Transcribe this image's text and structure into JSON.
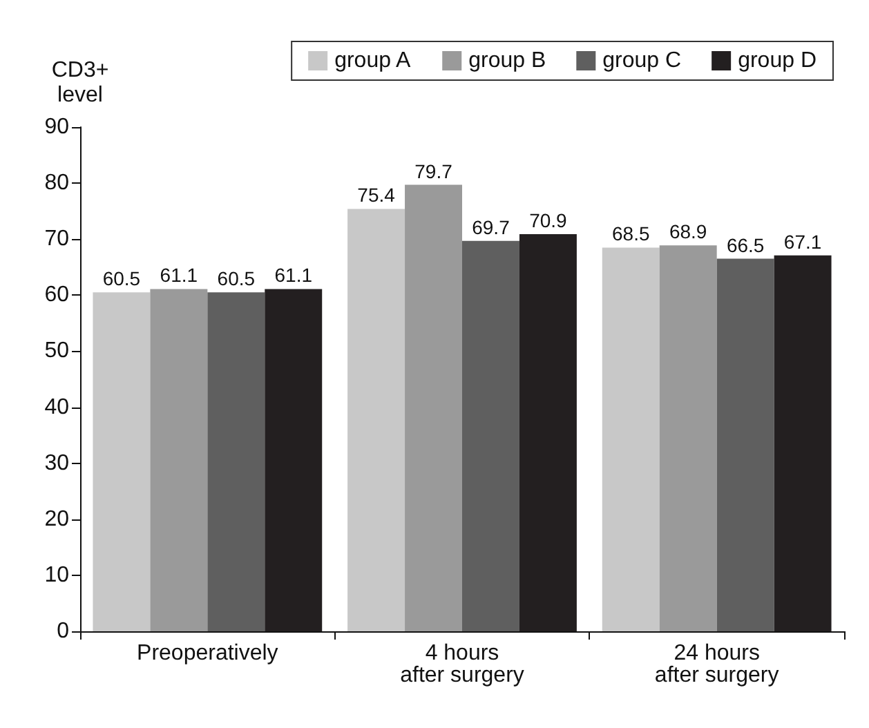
{
  "chart_data": {
    "type": "bar",
    "ylabel": "CD3+\nlevel",
    "categories": [
      "Preoperatively",
      "4 hours\nafter surgery",
      "24 hours\nafter surgery"
    ],
    "series": [
      {
        "name": "group A",
        "color": "#c8c8c8",
        "values": [
          60.5,
          75.4,
          68.5
        ]
      },
      {
        "name": "group B",
        "color": "#9a9a9a",
        "values": [
          61.1,
          79.7,
          68.9
        ]
      },
      {
        "name": "group C",
        "color": "#5f5f5f",
        "values": [
          60.5,
          69.7,
          66.5
        ]
      },
      {
        "name": "group D",
        "color": "#231f20",
        "values": [
          61.1,
          70.9,
          67.1
        ]
      }
    ],
    "ylim": [
      0,
      90
    ],
    "yticks": [
      0,
      10,
      20,
      30,
      40,
      50,
      60,
      70,
      80,
      90
    ],
    "grid": false,
    "legend": "top right",
    "data_labels": true
  }
}
